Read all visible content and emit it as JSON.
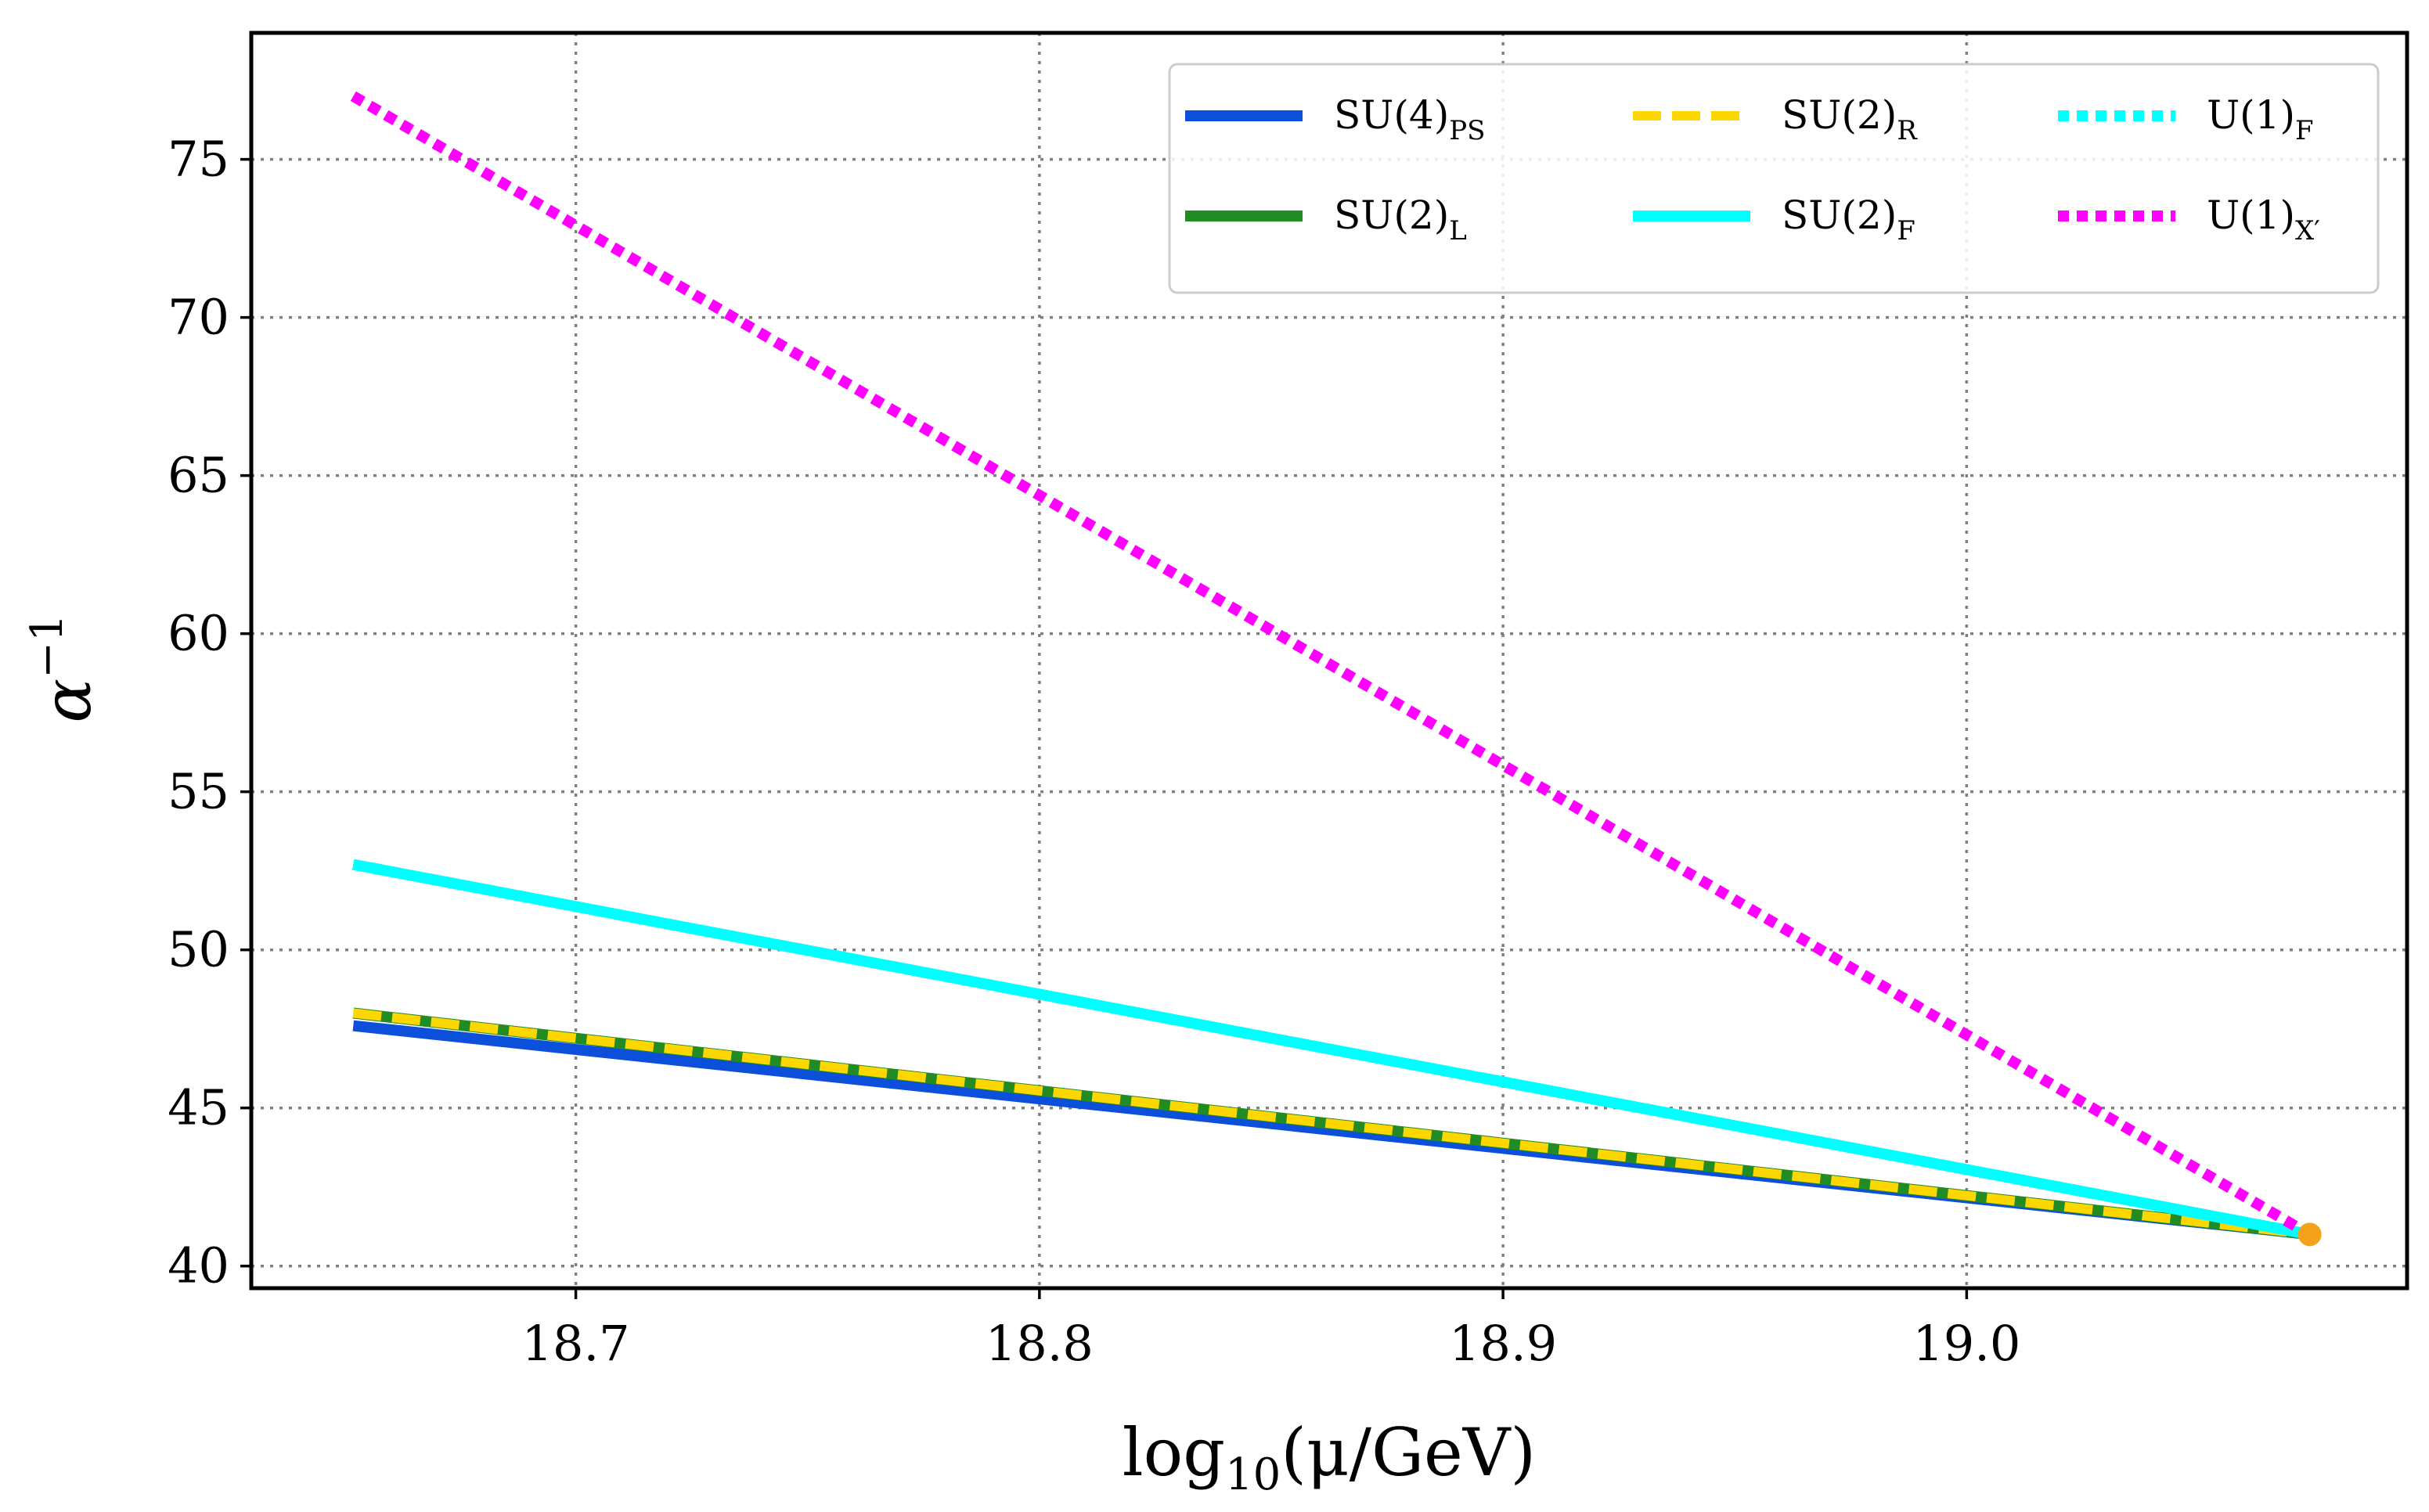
{
  "chart_data": {
    "type": "line",
    "title": "",
    "xlabel": {
      "base": "log",
      "subscript": "10",
      "rest": "(μ/GeV)"
    },
    "ylabel": {
      "base": "α",
      "superscript": "−1"
    },
    "xlim": [
      18.63,
      19.095
    ],
    "ylim": [
      39.3,
      79.0
    ],
    "xticks": [
      18.7,
      18.8,
      18.9,
      19.0
    ],
    "xtick_labels": [
      "18.7",
      "18.8",
      "18.9",
      "19.0"
    ],
    "yticks": [
      40,
      45,
      50,
      55,
      60,
      65,
      70,
      75
    ],
    "ytick_labels": [
      "40",
      "45",
      "50",
      "55",
      "60",
      "65",
      "70",
      "75"
    ],
    "grid": true,
    "legend_placement": "top-right",
    "series": [
      {
        "name": "SU(4)_PS",
        "label": "SU(4)",
        "sub": "PS",
        "color": "#0c4fdb",
        "style": "solid",
        "x": [
          18.652,
          19.074
        ],
        "y": [
          47.6,
          41.0
        ]
      },
      {
        "name": "SU(2)_L",
        "label": "SU(2)",
        "sub": "L",
        "color": "#228b22",
        "style": "solid",
        "x": [
          18.652,
          19.074
        ],
        "y": [
          48.0,
          41.0
        ]
      },
      {
        "name": "SU(2)_R",
        "label": "SU(2)",
        "sub": "R",
        "color": "#ffd700",
        "style": "dashed",
        "x": [
          18.652,
          19.074
        ],
        "y": [
          48.0,
          41.0
        ]
      },
      {
        "name": "SU(2)_F",
        "label": "SU(2)",
        "sub": "F",
        "color": "#00ffff",
        "style": "solid",
        "x": [
          18.652,
          19.074
        ],
        "y": [
          52.7,
          41.0
        ]
      },
      {
        "name": "U(1)_F",
        "label": "U(1)",
        "sub": "F",
        "color": "#00ffff",
        "style": "dotted",
        "x": [
          18.652,
          19.074
        ],
        "y": [
          52.7,
          41.0
        ]
      },
      {
        "name": "U(1)_X'",
        "label": "U(1)",
        "sub": "X′",
        "color": "#ff00ff",
        "style": "dotted",
        "x": [
          18.652,
          19.074
        ],
        "y": [
          77.0,
          41.0
        ]
      }
    ],
    "legend_order": [
      0,
      1,
      2,
      3,
      4,
      5
    ],
    "marker": {
      "name": "unification point",
      "x": 19.074,
      "y": 41.0,
      "color": "#f5a21b"
    }
  }
}
